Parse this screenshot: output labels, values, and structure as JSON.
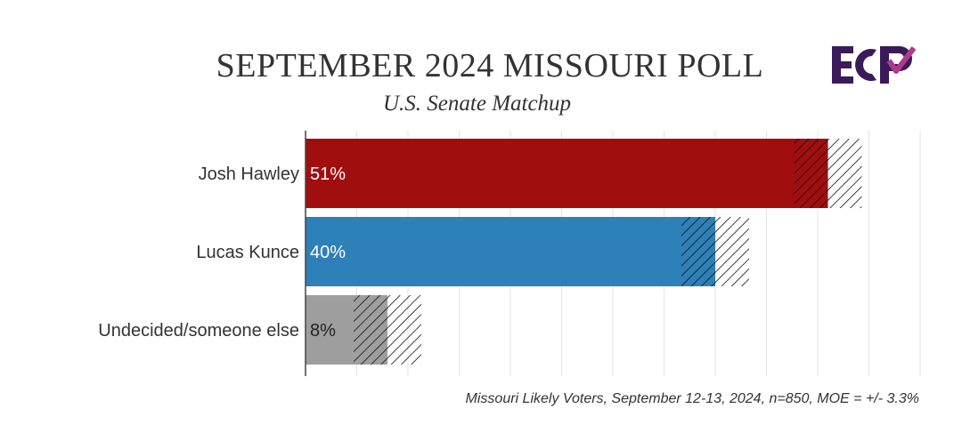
{
  "header": {
    "title": "SEPTEMBER 2024 MISSOURI POLL",
    "subtitle": "U.S. Senate Matchup"
  },
  "logo": {
    "text": "ECP",
    "icon": "ecp-checkmark-logo",
    "color": "#3a1a5a"
  },
  "footnote": "Missouri Likely Voters, September 12-13, 2024, n=850, MOE = +/- 3.3%",
  "chart_data": {
    "type": "bar",
    "orientation": "horizontal",
    "categories": [
      "Josh Hawley",
      "Lucas Kunce",
      "Undecided/someone else"
    ],
    "values": [
      51,
      40,
      8
    ],
    "value_labels": [
      "51%",
      "40%",
      "8%"
    ],
    "margin_of_error": 3.3,
    "colors": [
      "#a10e0e",
      "#2e80b8",
      "#9e9e9e"
    ],
    "label_colors": [
      "#ffffff",
      "#ffffff",
      "#222222"
    ],
    "xlim": [
      0,
      60
    ],
    "grid": true,
    "moe_shown_as": "hatched band"
  }
}
